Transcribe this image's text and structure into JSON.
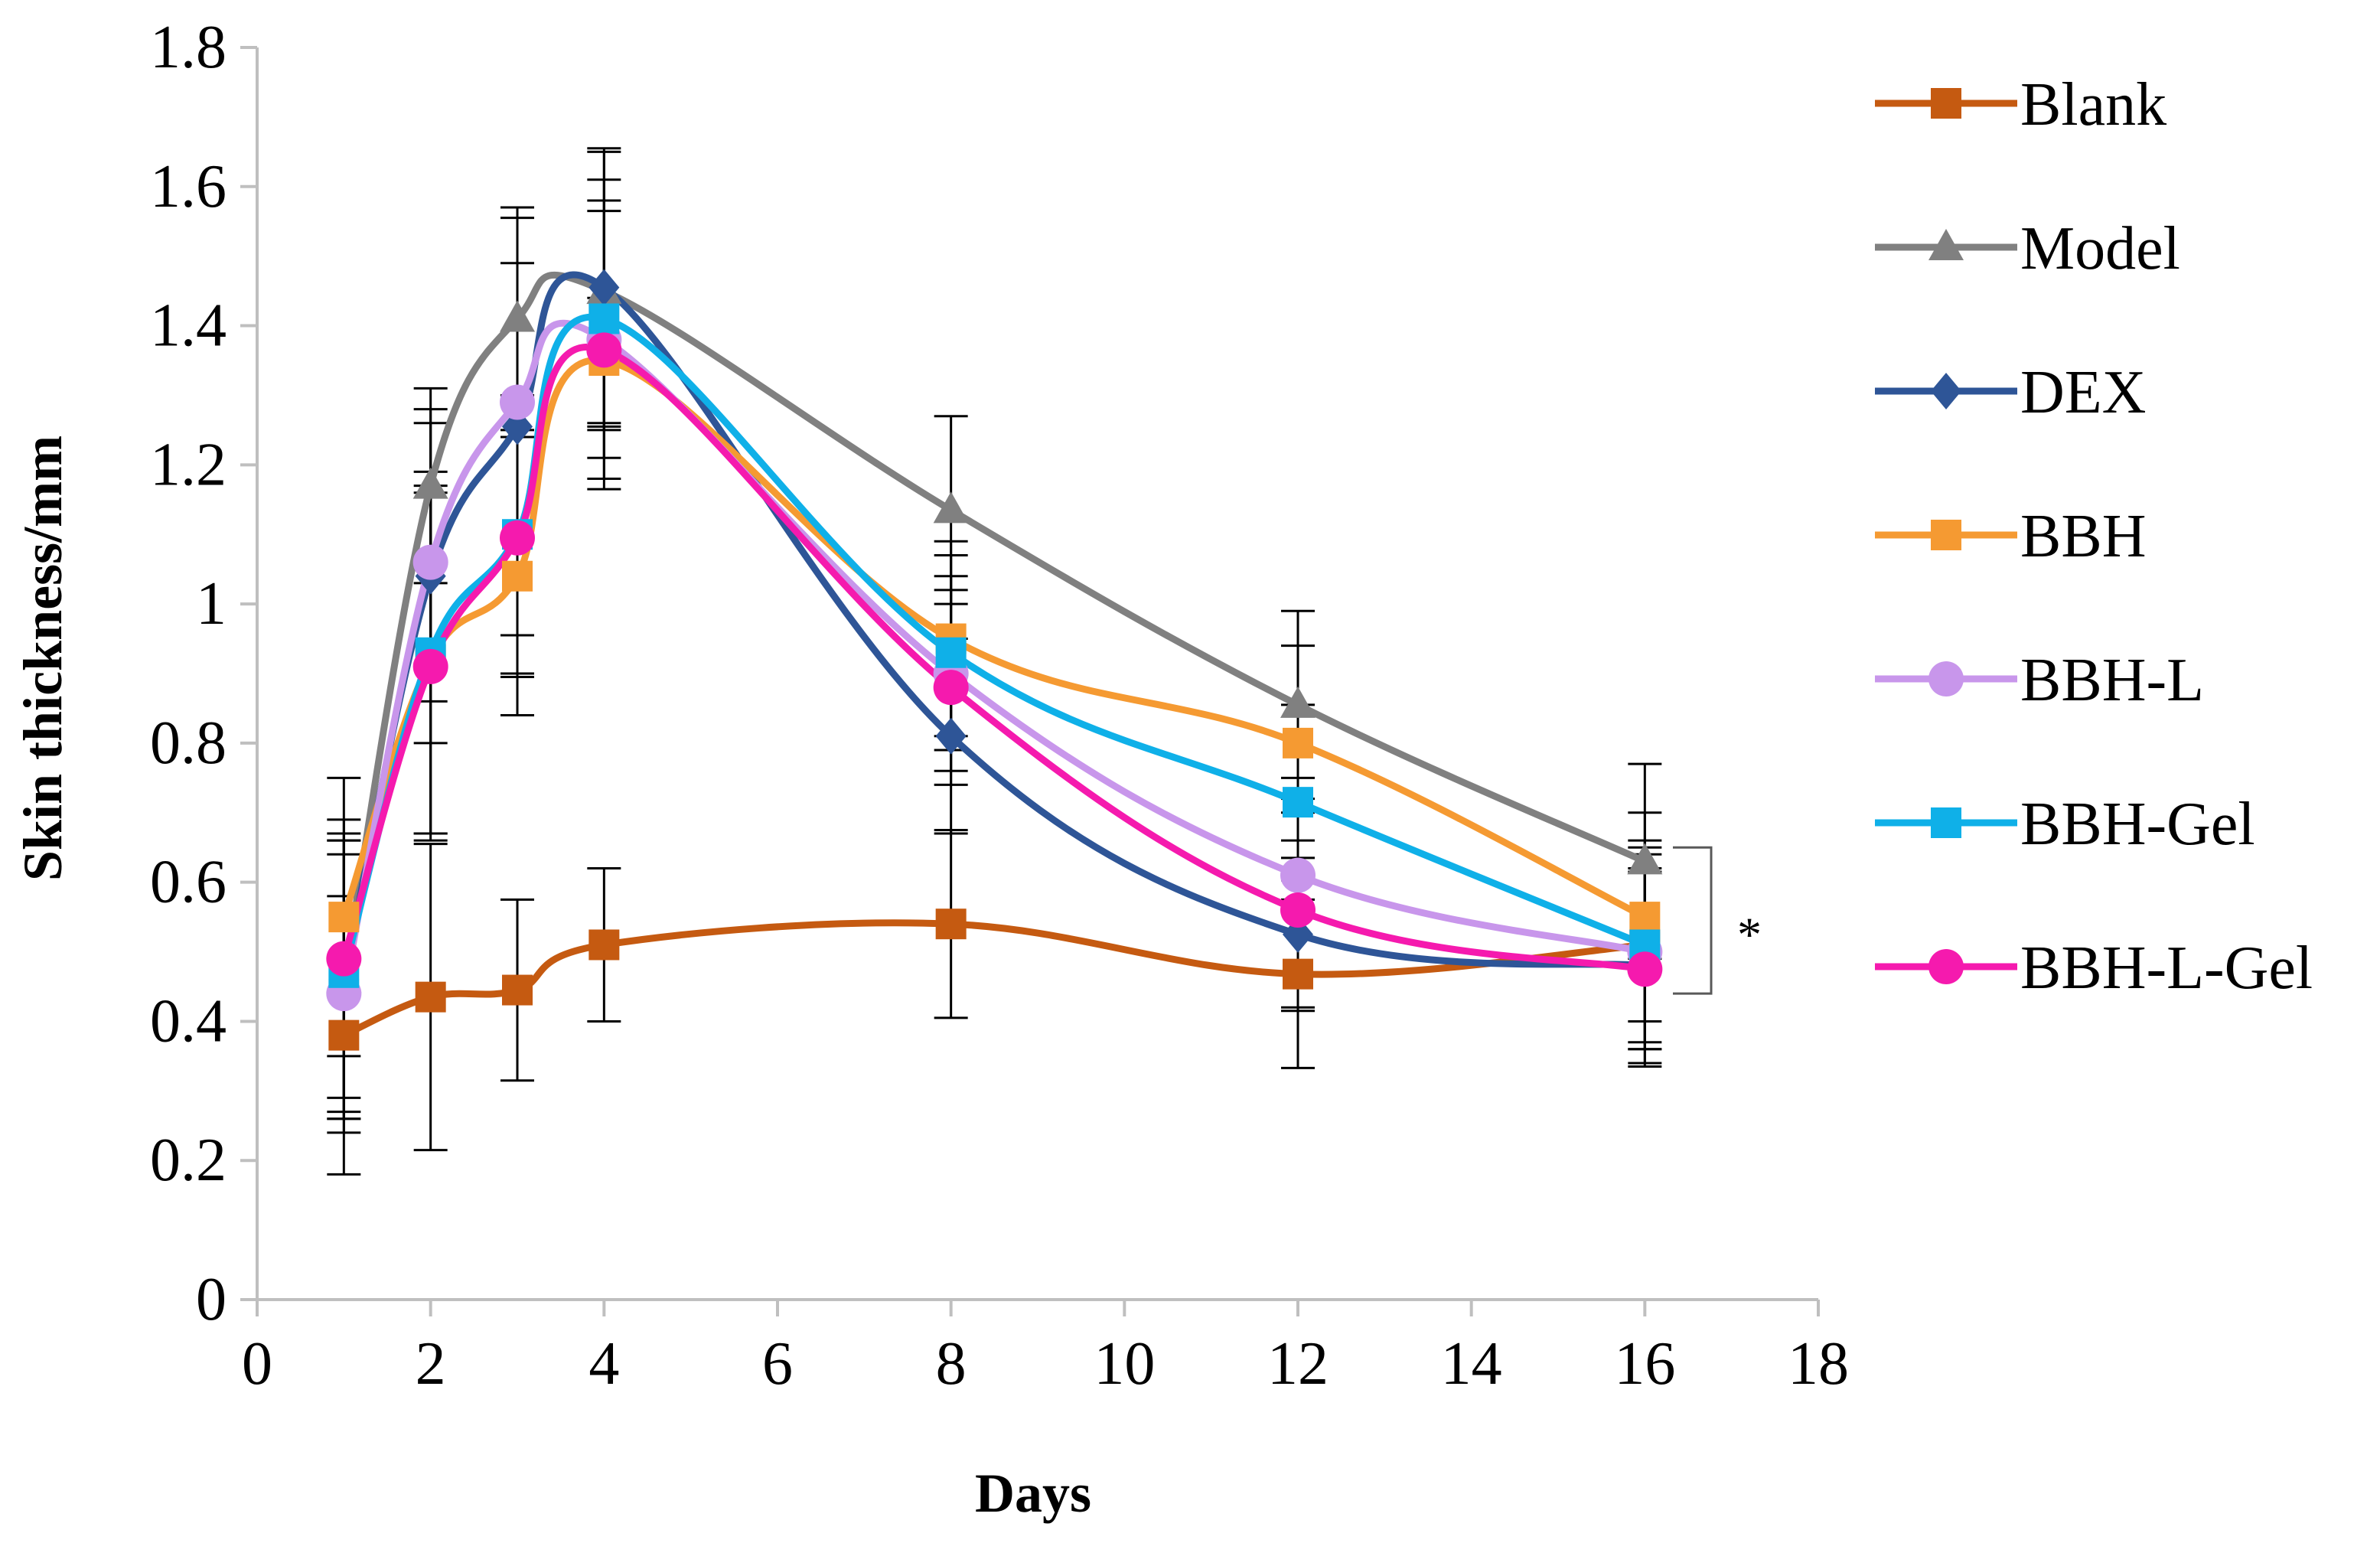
{
  "chart_data": {
    "type": "line",
    "title": "",
    "xlabel": "Days",
    "ylabel": "Skin thickness/mm",
    "xlim": [
      0,
      18
    ],
    "ylim": [
      0,
      1.8
    ],
    "xticks": [
      "0",
      "2",
      "4",
      "6",
      "8",
      "10",
      "12",
      "14",
      "16",
      "18"
    ],
    "yticks": [
      "0",
      "0.2",
      "0.4",
      "0.6",
      "0.8",
      "1",
      "1.2",
      "1.4",
      "1.6",
      "1.8"
    ],
    "grid": false,
    "legend_position": "right",
    "x": [
      1,
      2,
      3,
      4,
      8,
      12,
      16
    ],
    "series": [
      {
        "name": "Blank",
        "color": "#C55A11",
        "marker": "square",
        "values": [
          0.38,
          0.435,
          0.445,
          0.51,
          0.54,
          0.468,
          0.51
        ],
        "errors": [
          0.2,
          0.22,
          0.13,
          0.11,
          0.135,
          0.135,
          0.15
        ]
      },
      {
        "name": "Model",
        "color": "#808080",
        "marker": "triangle",
        "values": [
          0.46,
          1.17,
          1.41,
          1.45,
          1.135,
          0.855,
          0.63
        ],
        "errors": [
          0.2,
          0.14,
          0.16,
          0.2,
          0.135,
          0.135,
          0.14
        ]
      },
      {
        "name": "DEX",
        "color": "#2E5597",
        "marker": "diamond",
        "values": [
          0.46,
          1.04,
          1.255,
          1.455,
          0.81,
          0.525,
          0.48
        ],
        "errors": [
          0.2,
          0.24,
          0.3,
          0.2,
          0.14,
          0.11,
          0.14
        ]
      },
      {
        "name": "BBH",
        "color": "#F59A32",
        "marker": "square",
        "values": [
          0.55,
          0.92,
          1.04,
          1.35,
          0.95,
          0.8,
          0.55
        ],
        "errors": [
          0.2,
          0.25,
          0.2,
          0.09,
          0.14,
          0.14,
          0.15
        ]
      },
      {
        "name": "BBH-L",
        "color": "#C896EB",
        "marker": "circle",
        "values": [
          0.44,
          1.06,
          1.29,
          1.38,
          0.9,
          0.61,
          0.5
        ],
        "errors": [
          0.2,
          0.2,
          0.2,
          0.2,
          0.14,
          0.14,
          0.14
        ]
      },
      {
        "name": "BBH-Gel",
        "color": "#0FB0E8",
        "marker": "square",
        "values": [
          0.47,
          0.93,
          1.1,
          1.41,
          0.93,
          0.715,
          0.51
        ],
        "errors": [
          0.2,
          0.26,
          0.2,
          0.2,
          0.14,
          0.14,
          0.14
        ]
      },
      {
        "name": "BBH-L-Gel",
        "color": "#F51AAE",
        "marker": "circle",
        "values": [
          0.49,
          0.91,
          1.095,
          1.365,
          0.88,
          0.56,
          0.475
        ],
        "errors": [
          0.2,
          0.25,
          0.2,
          0.2,
          0.14,
          0.14,
          0.14
        ]
      }
    ],
    "annotations": [
      {
        "text": "*",
        "x": 16,
        "y_range": [
          0.44,
          0.65
        ],
        "meaning": "significance bracket"
      }
    ]
  }
}
